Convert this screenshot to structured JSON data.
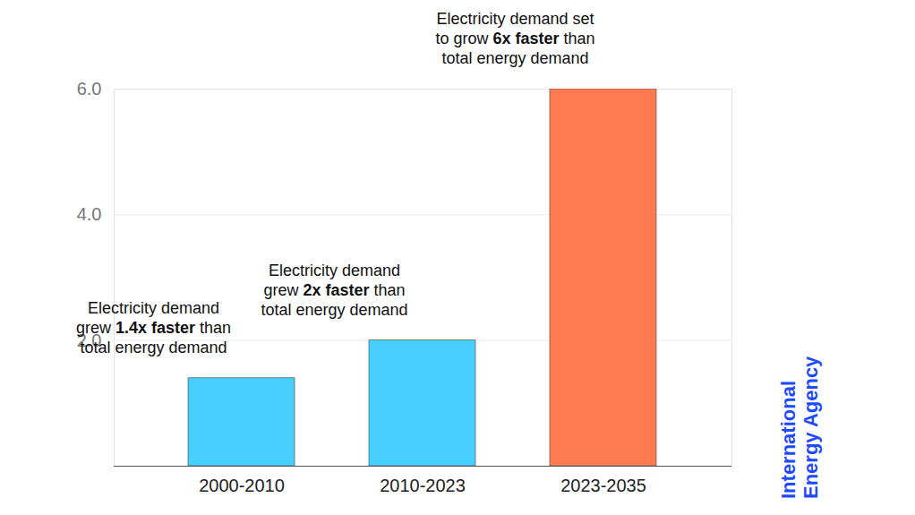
{
  "chart_data": {
    "type": "bar",
    "categories": [
      "2000-2010",
      "2010-2023",
      "2023-2035"
    ],
    "values": [
      1.4,
      2,
      6
    ],
    "colors": [
      "#47d0ff",
      "#47d0ff",
      "#ff7a50"
    ],
    "ylim": [
      0,
      6
    ],
    "yticks": [
      2,
      4,
      6
    ],
    "grid": true,
    "annotations": [
      {
        "category": "2000-2010",
        "lines": [
          "Electricity demand",
          "grew 1.4x faster than",
          "total energy demand"
        ],
        "bold": "1.4x faster"
      },
      {
        "category": "2010-2023",
        "lines": [
          "Electricity demand",
          "grew 2x faster than",
          "total energy demand"
        ],
        "bold": "2x faster"
      },
      {
        "category": "2023-2035",
        "lines": [
          "Electricity demand set",
          "to grow 6x faster than",
          "total energy demand"
        ],
        "bold": "6x faster"
      }
    ],
    "source": [
      "International",
      "Energy Agency"
    ]
  }
}
